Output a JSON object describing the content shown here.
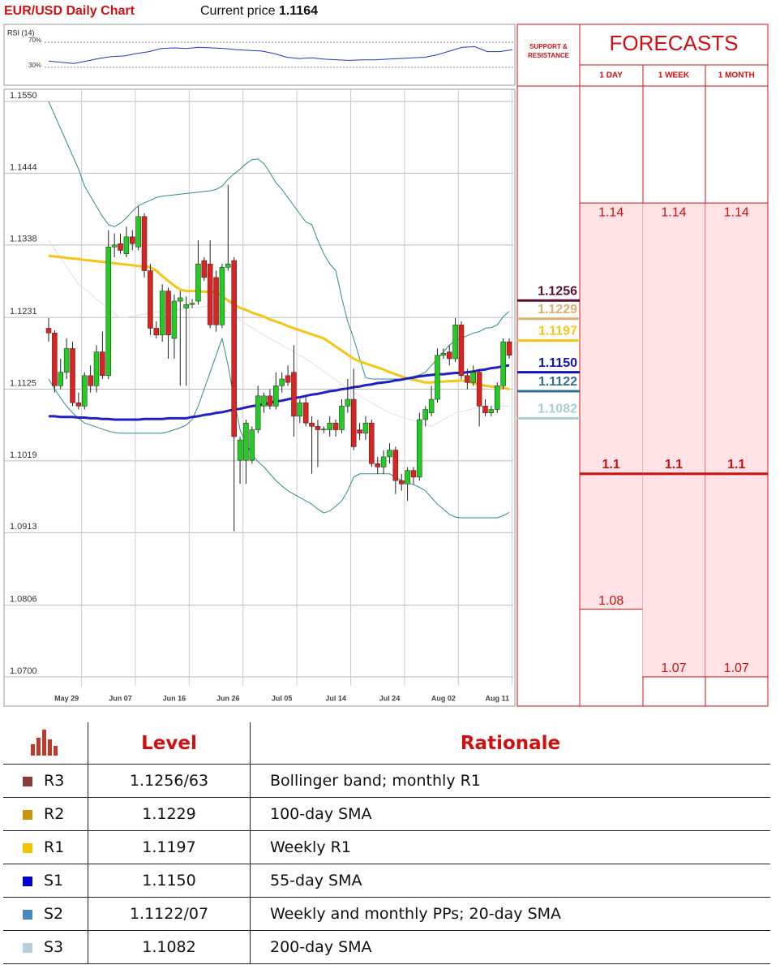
{
  "header": {
    "title": "EUR/USD Daily Chart",
    "price_label": "Current price",
    "price": 1.1164
  },
  "chart_data": [
    {
      "type": "candlestick",
      "ylim": [
        1.07,
        1.155
      ],
      "yticks": [
        {
          "value": 1.155,
          "label": "1.1550"
        },
        1.1444,
        1.1338,
        1.1231,
        1.1125,
        1.1019,
        1.0913,
        1.0806,
        {
          "value": 1.07,
          "label": "1.0700"
        }
      ],
      "grid": true,
      "up_color": "#22cc22",
      "down_color": "#dd2222",
      "categories": [
        null,
        null,
        null,
        "May 29",
        null,
        null,
        null,
        null,
        null,
        null,
        null,
        null,
        "Jun 07",
        null,
        null,
        null,
        null,
        null,
        null,
        null,
        null,
        "Jun 16",
        null,
        null,
        null,
        null,
        null,
        null,
        null,
        null,
        "Jun 26",
        null,
        null,
        null,
        null,
        null,
        null,
        null,
        null,
        "Jul 05",
        null,
        null,
        null,
        null,
        null,
        null,
        null,
        null,
        "Jul 14",
        null,
        null,
        null,
        null,
        null,
        null,
        null,
        null,
        "Jul 24",
        null,
        null,
        null,
        null,
        null,
        null,
        null,
        null,
        "Aug 02",
        null,
        null,
        null,
        null,
        null,
        null,
        null,
        null,
        "Aug 11",
        null,
        null
      ],
      "open": [
        1.1215,
        1.1208,
        1.113,
        1.115,
        1.1185,
        1.1105,
        1.11,
        1.1145,
        1.113,
        1.118,
        1.1145,
        1.1335,
        1.134,
        1.1325,
        1.135,
        1.1335,
        1.138,
        1.13,
        1.1215,
        1.1205,
        1.127,
        1.12,
        1.1255,
        1.1245,
        1.125,
        1.1255,
        1.1315,
        1.131,
        1.129,
        1.122,
        1.1305,
        1.1315,
        1.102,
        1.102,
        1.102,
        1.1065,
        1.11,
        1.1115,
        1.11,
        1.113,
        1.1145,
        1.115,
        1.1085,
        1.1105,
        1.1075,
        1.107,
        1.1065,
        1.1065,
        1.1075,
        1.1065,
        1.11,
        1.111,
        1.1065,
        1.106,
        1.1075,
        1.1015,
        1.101,
        1.1025,
        1.1035,
        1.099,
        1.0985,
        1.1005,
        1.0995,
        1.108,
        1.109,
        1.111,
        1.1175,
        1.118,
        1.117,
        1.122,
        1.1145,
        1.1135,
        1.115,
        1.11,
        1.109,
        1.1095,
        1.113,
        1.1195
      ],
      "high": [
        1.123,
        1.1212,
        1.117,
        1.12,
        1.1195,
        1.112,
        1.115,
        1.116,
        1.119,
        1.121,
        1.136,
        1.1355,
        1.1355,
        1.1365,
        1.136,
        1.1395,
        1.1385,
        1.131,
        1.1225,
        1.128,
        1.1275,
        1.1265,
        1.127,
        1.1262,
        1.1258,
        1.1345,
        1.132,
        1.1345,
        1.13,
        1.131,
        1.1427,
        1.132,
        1.1055,
        1.108,
        1.107,
        1.113,
        1.112,
        1.1125,
        1.115,
        1.115,
        1.116,
        1.119,
        1.111,
        1.1115,
        1.1085,
        1.108,
        1.107,
        1.1085,
        1.108,
        1.111,
        1.114,
        1.1155,
        1.1075,
        1.1085,
        1.108,
        1.1025,
        1.1035,
        1.1045,
        1.104,
        1.1,
        1.101,
        1.101,
        1.109,
        1.11,
        1.113,
        1.1185,
        1.1185,
        1.119,
        1.123,
        1.1225,
        1.1155,
        1.116,
        1.1155,
        1.111,
        1.11,
        1.1135,
        1.12,
        1.12
      ],
      "low": [
        1.1195,
        1.112,
        1.1125,
        1.114,
        1.11,
        1.1095,
        1.1095,
        1.112,
        1.112,
        1.114,
        1.114,
        1.132,
        1.1325,
        1.132,
        1.133,
        1.133,
        1.129,
        1.1205,
        1.12,
        1.1195,
        1.117,
        1.117,
        1.113,
        1.113,
        1.1245,
        1.125,
        1.1285,
        1.1215,
        1.121,
        1.1215,
        1.13,
        1.0915,
        1.0985,
        1.0985,
        1.1015,
        1.106,
        1.109,
        1.1095,
        1.1095,
        1.112,
        1.113,
        1.1055,
        1.1075,
        1.107,
        1.1,
        1.101,
        1.106,
        1.1055,
        1.1055,
        1.106,
        1.109,
        1.1035,
        1.105,
        1.105,
        1.101,
        1.1,
        1.1,
        1.1015,
        1.097,
        1.0975,
        1.096,
        1.0985,
        1.099,
        1.107,
        1.1085,
        1.1105,
        1.117,
        1.116,
        1.1165,
        1.114,
        1.1125,
        1.113,
        1.107,
        1.1085,
        1.1085,
        1.109,
        1.1125,
        1.117
      ],
      "close": [
        1.1208,
        1.113,
        1.115,
        1.1185,
        1.1105,
        1.11,
        1.1145,
        1.113,
        1.118,
        1.1145,
        1.1335,
        1.1338,
        1.133,
        1.135,
        1.134,
        1.138,
        1.13,
        1.1215,
        1.1205,
        1.127,
        1.1205,
        1.1255,
        1.126,
        1.125,
        1.1252,
        1.131,
        1.129,
        1.122,
        1.122,
        1.1305,
        1.131,
        1.1055,
        1.105,
        1.1075,
        1.1065,
        1.1115,
        1.1115,
        1.11,
        1.113,
        1.114,
        1.1135,
        1.1085,
        1.1105,
        1.1075,
        1.107,
        1.1065,
        1.1066,
        1.1075,
        1.1065,
        1.11,
        1.111,
        1.104,
        1.106,
        1.1075,
        1.1015,
        1.101,
        1.1025,
        1.1035,
        1.099,
        1.0985,
        1.1005,
        1.0995,
        1.108,
        1.1095,
        1.111,
        1.1175,
        1.1178,
        1.117,
        1.122,
        1.1145,
        1.1135,
        1.115,
        1.11,
        1.109,
        1.1095,
        1.113,
        1.1195,
        1.1175
      ],
      "overlays": [
        {
          "color": "#e0e0e0",
          "width": 1,
          "values": [
            1.1345,
            1.1332,
            1.1319,
            1.1306,
            1.1293,
            1.128,
            1.1273,
            1.1266,
            1.1258,
            1.1251,
            1.1244,
            1.1237,
            1.123,
            1.1231,
            1.1233,
            1.1234,
            1.1236,
            1.1237,
            1.1239,
            1.124,
            1.1241,
            1.1242,
            1.1243,
            1.1244,
            1.1245,
            1.1246,
            1.1247,
            1.1248,
            1.125,
            1.1244,
            1.1238,
            1.1233,
            1.1227,
            1.1221,
            1.1216,
            1.121,
            1.1205,
            1.12,
            1.1195,
            1.119,
            1.1185,
            1.118,
            1.1175,
            1.117,
            1.1164,
            1.1158,
            1.1151,
            1.1145,
            1.1139,
            1.1132,
            1.1126,
            1.112,
            1.1115,
            1.111,
            1.1105,
            1.11,
            1.1095,
            1.109,
            1.1087,
            1.1084,
            1.1081,
            1.1079,
            1.1076,
            1.1073,
            1.107,
            1.1075,
            1.108,
            1.1085,
            1.109,
            1.1092,
            1.1094,
            1.1096,
            1.1098,
            1.11,
            1.11,
            1.11,
            1.11,
            1.11
          ]
        },
        {
          "color": "#2e8b8b",
          "width": 1,
          "values": [
            1.155,
            1.153,
            1.151,
            1.149,
            1.147,
            1.145,
            1.1425,
            1.141,
            1.1395,
            1.138,
            1.1368,
            1.1365,
            1.137,
            1.1378,
            1.1388,
            1.1396,
            1.14,
            1.1404,
            1.1408,
            1.141,
            1.1411,
            1.1412,
            1.1413,
            1.1414,
            1.1415,
            1.1416,
            1.1417,
            1.1418,
            1.142,
            1.1425,
            1.1435,
            1.1443,
            1.145,
            1.1458,
            1.1464,
            1.1465,
            1.1458,
            1.1445,
            1.143,
            1.142,
            1.1408,
            1.1396,
            1.1384,
            1.1372,
            1.1368,
            1.1345,
            1.1325,
            1.131,
            1.13,
            1.126,
            1.1225,
            1.12,
            1.117,
            1.1142,
            1.114,
            1.114,
            1.114,
            1.114,
            1.114,
            1.114,
            1.1142,
            1.1144,
            1.1146,
            1.115,
            1.116,
            1.117,
            1.118,
            1.119,
            1.1197,
            1.12,
            1.1204,
            1.1208,
            1.121,
            1.1215,
            1.1216,
            1.122,
            1.1232,
            1.124
          ]
        },
        {
          "color": "#2e8b8b",
          "width": 1,
          "values": [
            1.114,
            1.1125,
            1.1112,
            1.11,
            1.109,
            1.1082,
            1.1075,
            1.1072,
            1.1069,
            1.1066,
            1.1063,
            1.1061,
            1.106,
            1.106,
            1.106,
            1.106,
            1.106,
            1.106,
            1.106,
            1.106,
            1.1062,
            1.1065,
            1.1068,
            1.1072,
            1.108,
            1.11,
            1.1125,
            1.115,
            1.1175,
            1.12,
            1.116,
            1.111,
            1.1065,
            1.1045,
            1.1028,
            1.1018,
            1.101,
            1.1,
            1.099,
            1.0982,
            1.0975,
            1.097,
            1.0965,
            1.096,
            1.0955,
            1.0948,
            1.0942,
            1.0945,
            1.0952,
            1.096,
            1.0975,
            1.0995,
            1.1,
            1.1,
            1.1,
            1.1,
            1.1,
            1.1,
            1.0995,
            1.099,
            1.0987,
            1.0984,
            1.098,
            1.0975,
            1.0965,
            1.0955,
            1.0948,
            1.094,
            1.0936,
            1.0935,
            1.0935,
            1.0935,
            1.0935,
            1.0935,
            1.0935,
            1.0935,
            1.0938,
            1.0943
          ]
        },
        {
          "color": "#f5c518",
          "width": 3,
          "values": [
            1.1322,
            1.1321,
            1.132,
            1.1319,
            1.1318,
            1.1317,
            1.1316,
            1.1315,
            1.1314,
            1.1313,
            1.1312,
            1.1311,
            1.131,
            1.1309,
            1.1308,
            1.1307,
            1.1306,
            1.1305,
            1.13,
            1.1292,
            1.1285,
            1.1278,
            1.1272,
            1.127,
            1.127,
            1.127,
            1.1269,
            1.1269,
            1.1268,
            1.1262,
            1.1256,
            1.125,
            1.1245,
            1.1242,
            1.1238,
            1.1235,
            1.1232,
            1.1228,
            1.1225,
            1.1222,
            1.1218,
            1.1215,
            1.1212,
            1.1209,
            1.1206,
            1.1203,
            1.12,
            1.1194,
            1.1188,
            1.1182,
            1.1176,
            1.117,
            1.1166,
            1.1163,
            1.116,
            1.1157,
            1.1154,
            1.115,
            1.1147,
            1.1144,
            1.1141,
            1.1139,
            1.1137,
            1.1135,
            1.1135,
            1.1136,
            1.1136,
            1.1137,
            1.1137,
            1.1138,
            1.1136,
            1.1134,
            1.1132,
            1.113,
            1.1129,
            1.1128,
            1.1127,
            1.1125
          ]
        },
        {
          "color": "#2020c8",
          "width": 3,
          "values": [
            1.1085,
            1.1085,
            1.1084,
            1.1084,
            1.1084,
            1.1083,
            1.1083,
            1.1082,
            1.1082,
            1.1081,
            1.1081,
            1.108,
            1.108,
            1.108,
            1.108,
            1.108,
            1.1081,
            1.1081,
            1.1081,
            1.1081,
            1.1082,
            1.1082,
            1.1082,
            1.1082,
            1.1084,
            1.1085,
            1.1087,
            1.1088,
            1.109,
            1.1091,
            1.1093,
            1.1095,
            1.1096,
            1.1098,
            1.11,
            1.1101,
            1.1103,
            1.1105,
            1.1107,
            1.1108,
            1.111,
            1.1112,
            1.1113,
            1.1115,
            1.1117,
            1.1118,
            1.112,
            1.1122,
            1.1123,
            1.1125,
            1.1126,
            1.1128,
            1.1129,
            1.1131,
            1.1132,
            1.1134,
            1.1135,
            1.1136,
            1.1138,
            1.1139,
            1.1141,
            1.1142,
            1.1144,
            1.1145,
            1.1146,
            1.1147,
            1.1147,
            1.1148,
            1.1149,
            1.1149,
            1.115,
            1.1151,
            1.1153,
            1.1154,
            1.1156,
            1.1157,
            1.1159,
            1.116
          ]
        }
      ]
    },
    {
      "type": "line",
      "title": "RSI (14)",
      "color": "#2233cc",
      "ylim": [
        0,
        100
      ],
      "yticks": [
        {
          "value": 70,
          "label": "70%"
        },
        {
          "value": 30,
          "label": "30%"
        }
      ],
      "values": [
        40,
        38,
        36,
        40,
        44,
        47,
        48,
        52,
        55,
        60,
        61,
        60,
        62,
        61,
        60,
        58,
        57,
        56,
        52,
        46,
        44,
        45,
        43,
        42,
        41,
        42,
        42,
        43,
        44,
        45,
        46,
        50,
        56,
        62,
        63,
        55,
        55,
        58
      ]
    }
  ],
  "support_resistance": {
    "title": "SUPPORT & RESISTANCE",
    "levels": [
      {
        "value": 1.1256,
        "color": "#5a1030"
      },
      {
        "value": 1.1229,
        "color": "#d8b070"
      },
      {
        "value": 1.1197,
        "color": "#f5c518"
      },
      {
        "value": 1.115,
        "label": "1.1150",
        "color": "#1010c0"
      },
      {
        "value": 1.1122,
        "color": "#2f6f90"
      },
      {
        "value": 1.1082,
        "color": "#a8d0d0"
      }
    ]
  },
  "forecasts": {
    "title": "FORECASTS",
    "columns": [
      {
        "label": "1 DAY",
        "high": 1.14,
        "current": 1.1,
        "low": 1.08
      },
      {
        "label": "1 WEEK",
        "high": 1.14,
        "current": 1.1,
        "low": 1.07
      },
      {
        "label": "1 MONTH",
        "high": 1.14,
        "current": 1.1,
        "low": 1.07
      }
    ]
  },
  "table": {
    "header": [
      "Level",
      "Rationale"
    ],
    "rows": [
      {
        "code": "R3",
        "level": "1.1256/63",
        "rationale": "Bollinger band; monthly R1",
        "color": "#8b3a3a"
      },
      {
        "code": "R2",
        "level": "1.1229",
        "rationale": "100-day SMA",
        "color": "#c8960c"
      },
      {
        "code": "R1",
        "level": "1.1197",
        "rationale": "Weekly R1",
        "color": "#f5c400"
      },
      {
        "code": "S1",
        "level": "1.1150",
        "rationale": "55-day SMA",
        "color": "#0000cc"
      },
      {
        "code": "S2",
        "level": "1.1122/07",
        "rationale": "Weekly and monthly PPs; 20-day SMA",
        "color": "#4a86c0"
      },
      {
        "code": "S3",
        "level": "1.1082",
        "rationale": "200-day SMA",
        "color": "#b8cce4"
      }
    ]
  }
}
